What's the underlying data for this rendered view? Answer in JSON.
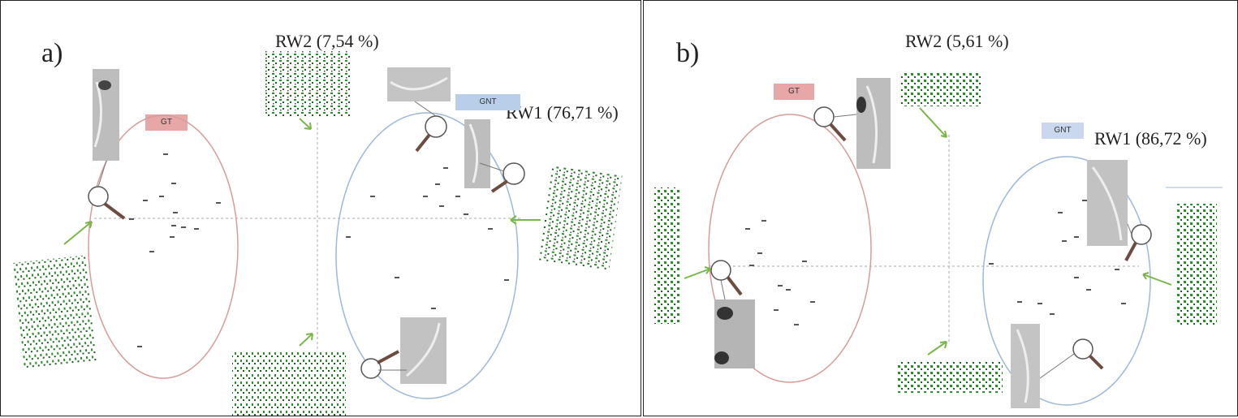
{
  "panels": [
    {
      "letter": "a)",
      "rw1": "RW1 (76,71 %)",
      "rw2": "RW2 (7,54 %)",
      "group_left": "GT",
      "group_right": "GNT",
      "group_left_color": "#e8a7a7",
      "group_right_color": "#b9cfe9"
    },
    {
      "letter": "b)",
      "rw1": "RW1 (86,72 %)",
      "rw2": "RW2 (5,61 %)",
      "group_left": "GT",
      "group_right": "GNT",
      "group_left_color": "#e8a7a7",
      "group_right_color": "#c9d8ee"
    }
  ],
  "colors": {
    "ellipse_gt": "#d99a9a",
    "ellipse_gnt": "#9db8d8",
    "arrow": "#7ab648",
    "landmark_grid": "#2e8b2e",
    "axis": "#aaaaaa",
    "border": "#222222"
  }
}
